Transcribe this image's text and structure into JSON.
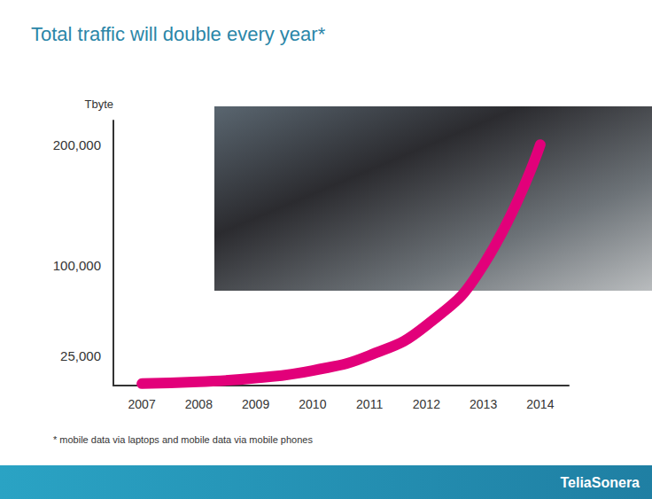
{
  "chart_data": {
    "type": "line",
    "title": "Total traffic will double every year*",
    "y_label": "Tbyte",
    "categories": [
      "2007",
      "2008",
      "2009",
      "2010",
      "2011",
      "2012",
      "2013",
      "2014"
    ],
    "values": [
      1600,
      3100,
      6300,
      12500,
      25000,
      50000,
      100000,
      200000
    ],
    "color": "#e2007a",
    "ylim": [
      0,
      220000
    ],
    "yticks": [
      {
        "value": 25000,
        "label": "25,000"
      },
      {
        "value": 100000,
        "label": "100,000"
      },
      {
        "value": 200000,
        "label": "200,000"
      }
    ],
    "grid": false
  },
  "footnote": "* mobile data via laptops and mobile data via mobile phones",
  "logo": "TeliaSonera"
}
